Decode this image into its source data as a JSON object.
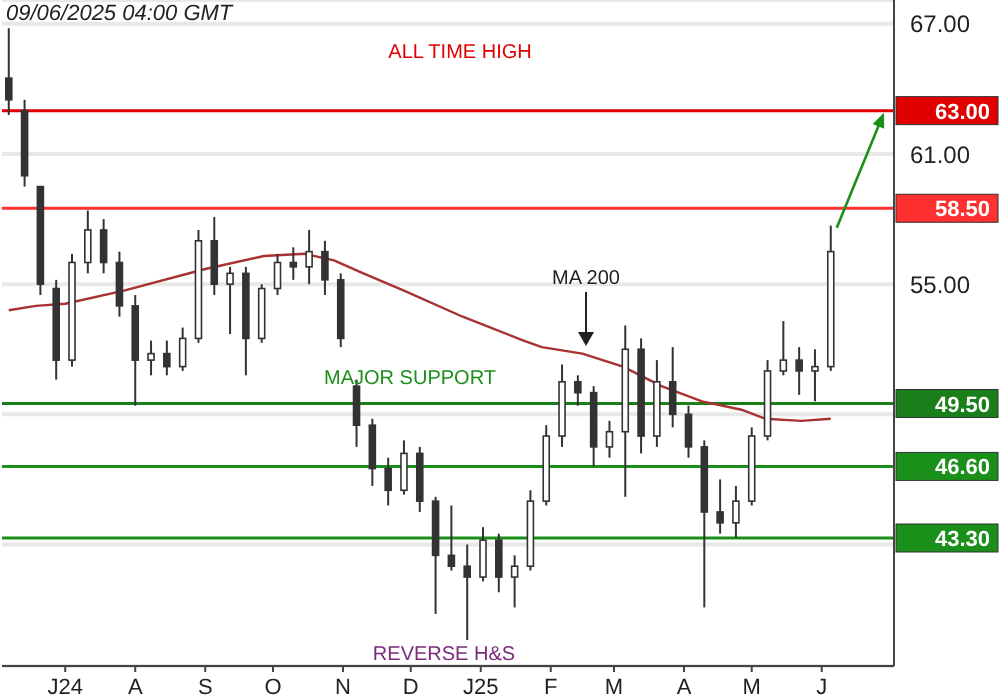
{
  "chart_data": {
    "type": "candlestick",
    "title": "09/06/2025 04:00 GMT",
    "color": "#333333",
    "x": [
      "2024-06-06",
      "2024-06-13",
      "2024-06-20",
      "2024-06-27",
      "2024-07-04",
      "2024-07-11",
      "2024-07-18",
      "2024-07-25",
      "2024-08-01",
      "2024-08-08",
      "2024-08-15",
      "2024-08-22",
      "2024-08-29",
      "2024-09-05",
      "2024-09-12",
      "2024-09-19",
      "2024-09-26",
      "2024-10-03",
      "2024-10-10",
      "2024-10-17",
      "2024-10-24",
      "2024-10-31",
      "2024-11-07",
      "2024-11-14",
      "2024-11-21",
      "2024-11-28",
      "2024-12-05",
      "2024-12-12",
      "2024-12-19",
      "2024-12-26",
      "2025-01-02",
      "2025-01-09",
      "2025-01-16",
      "2025-01-23",
      "2025-01-30",
      "2025-02-06",
      "2025-02-13",
      "2025-02-20",
      "2025-02-27",
      "2025-03-06",
      "2025-03-13",
      "2025-03-20",
      "2025-03-27",
      "2025-04-03",
      "2025-04-10",
      "2025-04-17",
      "2025-04-24",
      "2025-05-01",
      "2025-05-08",
      "2025-05-15",
      "2025-05-22",
      "2025-05-29",
      "2025-06-05"
    ],
    "ohlc": [
      [
        64.5,
        66.8,
        62.8,
        63.5
      ],
      [
        63.0,
        63.5,
        59.5,
        60.0
      ],
      [
        59.5,
        59.5,
        54.5,
        55.0
      ],
      [
        54.8,
        55.2,
        50.6,
        51.5
      ],
      [
        51.5,
        56.4,
        51.2,
        56.0
      ],
      [
        56.0,
        58.4,
        55.5,
        57.5
      ],
      [
        57.5,
        58.0,
        55.5,
        56.0
      ],
      [
        56.0,
        56.5,
        53.5,
        54.0
      ],
      [
        54.0,
        54.5,
        49.4,
        51.5
      ],
      [
        51.5,
        52.4,
        50.8,
        51.8
      ],
      [
        51.8,
        52.4,
        50.8,
        51.2
      ],
      [
        51.2,
        53.0,
        51.0,
        52.5
      ],
      [
        52.5,
        57.5,
        52.3,
        57.0
      ],
      [
        57.0,
        58.1,
        54.5,
        55.0
      ],
      [
        55.0,
        55.8,
        52.7,
        55.5
      ],
      [
        55.5,
        55.8,
        50.8,
        52.5
      ],
      [
        52.5,
        55.0,
        52.3,
        54.8
      ],
      [
        54.8,
        56.4,
        54.5,
        56.0
      ],
      [
        56.0,
        56.7,
        55.2,
        55.8
      ],
      [
        55.8,
        57.5,
        55.0,
        56.5
      ],
      [
        56.5,
        57.0,
        54.5,
        55.2
      ],
      [
        55.2,
        55.5,
        52.1,
        52.5
      ],
      [
        50.3,
        50.6,
        47.5,
        48.5
      ],
      [
        48.5,
        48.8,
        45.7,
        46.5
      ],
      [
        46.5,
        47.0,
        44.8,
        45.5
      ],
      [
        45.5,
        47.8,
        45.3,
        47.2
      ],
      [
        47.2,
        47.5,
        44.5,
        45.0
      ],
      [
        45.0,
        45.2,
        39.8,
        42.5
      ],
      [
        42.5,
        44.8,
        41.8,
        42.0
      ],
      [
        42.0,
        43.0,
        38.6,
        41.5
      ],
      [
        41.5,
        43.8,
        41.3,
        43.2
      ],
      [
        43.2,
        43.5,
        40.8,
        41.5
      ],
      [
        41.5,
        42.5,
        40.1,
        42.0
      ],
      [
        42.0,
        45.5,
        41.8,
        45.0
      ],
      [
        45.0,
        48.5,
        44.8,
        48.0
      ],
      [
        48.0,
        51.3,
        47.5,
        50.5
      ],
      [
        50.5,
        50.8,
        49.4,
        50.0
      ],
      [
        50.0,
        50.3,
        46.6,
        47.5
      ],
      [
        47.5,
        48.7,
        47.0,
        48.2
      ],
      [
        48.2,
        53.1,
        45.2,
        52.0
      ],
      [
        52.0,
        52.5,
        47.2,
        48.0
      ],
      [
        48.0,
        51.5,
        47.5,
        50.5
      ],
      [
        50.5,
        52.1,
        48.4,
        49.0
      ],
      [
        49.0,
        49.4,
        47.0,
        47.5
      ],
      [
        47.5,
        47.8,
        40.1,
        44.5
      ],
      [
        44.5,
        46.0,
        43.5,
        44.0
      ],
      [
        44.0,
        45.7,
        43.3,
        45.0
      ],
      [
        45.0,
        48.4,
        44.8,
        48.0
      ],
      [
        48.0,
        51.5,
        47.8,
        51.0
      ],
      [
        51.0,
        53.3,
        50.8,
        51.5
      ],
      [
        51.5,
        52.1,
        49.9,
        51.0
      ],
      [
        51.0,
        52.0,
        49.6,
        51.2
      ],
      [
        51.2,
        57.7,
        51.0,
        56.5
      ]
    ],
    "series": [
      {
        "type": "line",
        "color": "#a83232",
        "x": [
          "2024-06-06",
          "2024-06-18",
          "2024-07-01",
          "2024-07-27",
          "2024-09-01",
          "2024-09-27",
          "2024-10-15",
          "2024-10-28",
          "2024-11-10",
          "2024-11-28",
          "2024-12-24",
          "2025-01-20",
          "2025-01-28",
          "2025-02-15",
          "2025-03-05",
          "2025-03-22",
          "2025-04-09",
          "2025-04-27",
          "2025-05-07",
          "2025-05-23",
          "2025-06-05"
        ],
        "values": [
          53.8,
          54.0,
          54.1,
          54.7,
          55.7,
          56.3,
          56.4,
          56.1,
          55.5,
          54.7,
          53.5,
          52.4,
          52.1,
          51.8,
          51.2,
          50.3,
          49.6,
          49.2,
          48.8,
          48.7,
          48.8
        ]
      }
    ],
    "xlim": [
      "2024-06-03",
      "2025-07-03"
    ],
    "xticks": [
      {
        "value": "2024-07-01",
        "label": "J24"
      },
      {
        "value": "2024-08-01",
        "label": "A"
      },
      {
        "value": "2024-09-01",
        "label": "S"
      },
      {
        "value": "2024-10-01",
        "label": "O"
      },
      {
        "value": "2024-11-01",
        "label": "N"
      },
      {
        "value": "2024-12-01",
        "label": "D"
      },
      {
        "value": "2025-01-01",
        "label": "J25"
      },
      {
        "value": "2025-02-01",
        "label": "F"
      },
      {
        "value": "2025-03-01",
        "label": "M"
      },
      {
        "value": "2025-04-01",
        "label": "A"
      },
      {
        "value": "2025-05-01",
        "label": "M"
      },
      {
        "value": "2025-06-01",
        "label": "J"
      }
    ],
    "ylim": [
      37.4,
      68.1
    ],
    "yticks": [
      {
        "value": 67,
        "label": "67.00"
      },
      {
        "value": 61,
        "label": "61.00"
      },
      {
        "value": 55,
        "label": "55.00"
      },
      {
        "value": 49,
        "label": null
      },
      {
        "value": 43,
        "label": null
      }
    ],
    "grid": "y",
    "ref_lines": [
      {
        "axis": "y",
        "value": 63.0,
        "label": "63.00",
        "color": "#e00000"
      },
      {
        "axis": "y",
        "value": 58.5,
        "label": "58.50",
        "color": "#ff3030"
      },
      {
        "axis": "y",
        "value": 49.5,
        "label": "49.50",
        "color": "#1a7f1a"
      },
      {
        "axis": "y",
        "value": 46.6,
        "label": "46.60",
        "color": "#1a8f1a"
      },
      {
        "axis": "y",
        "value": 43.3,
        "label": "43.30",
        "color": "#1a8f1a"
      }
    ],
    "annotations": [
      "ALL TIME HIGH",
      "MAJOR SUPPORT",
      "MA 200",
      "REVERSE H&S"
    ]
  }
}
